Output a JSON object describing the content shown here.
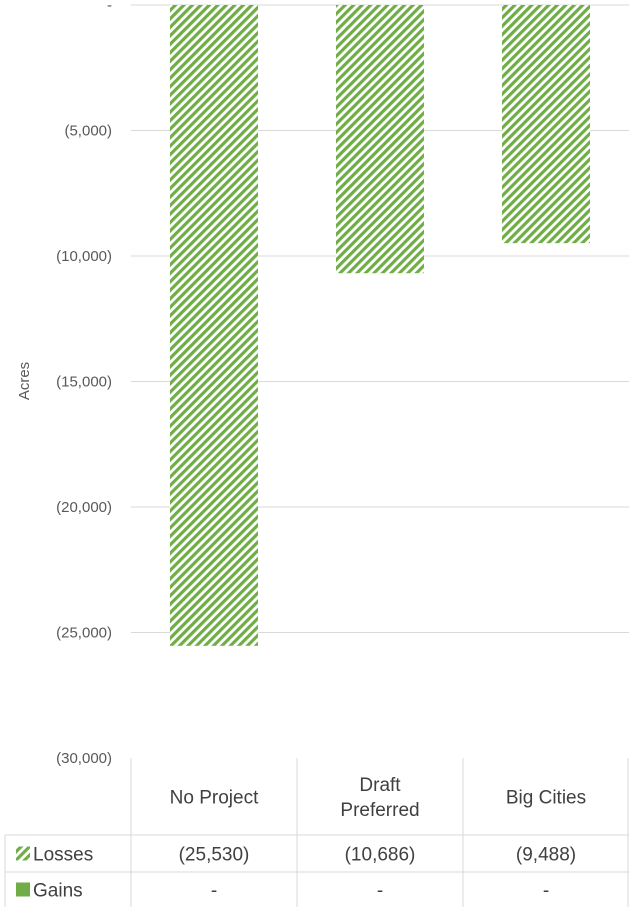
{
  "chart_data": {
    "type": "bar",
    "ylabel": "Acres",
    "ylim": [
      -30000,
      0
    ],
    "y_ticks": [
      0,
      -5000,
      -10000,
      -15000,
      -20000,
      -25000,
      -30000
    ],
    "y_tick_labels": [
      "-",
      "(5,000)",
      "(10,000)",
      "(15,000)",
      "(20,000)",
      "(25,000)",
      "(30,000)"
    ],
    "grid": true,
    "categories": [
      [
        "No Project"
      ],
      [
        "Draft",
        "Preferred"
      ],
      [
        "Big Cities"
      ]
    ],
    "series": [
      {
        "name": "Losses",
        "values": [
          -25530,
          -10686,
          -9488
        ],
        "value_labels": [
          "(25,530)",
          "(10,686)",
          "(9,488)"
        ],
        "color": "#70ad47",
        "fill": "diagonal-hatch"
      },
      {
        "name": "Gains",
        "values": [
          0,
          0,
          0
        ],
        "value_labels": [
          "-",
          "-",
          "-"
        ],
        "color": "#70ad47",
        "fill": "solid"
      }
    ],
    "legend_position": "data-table"
  }
}
